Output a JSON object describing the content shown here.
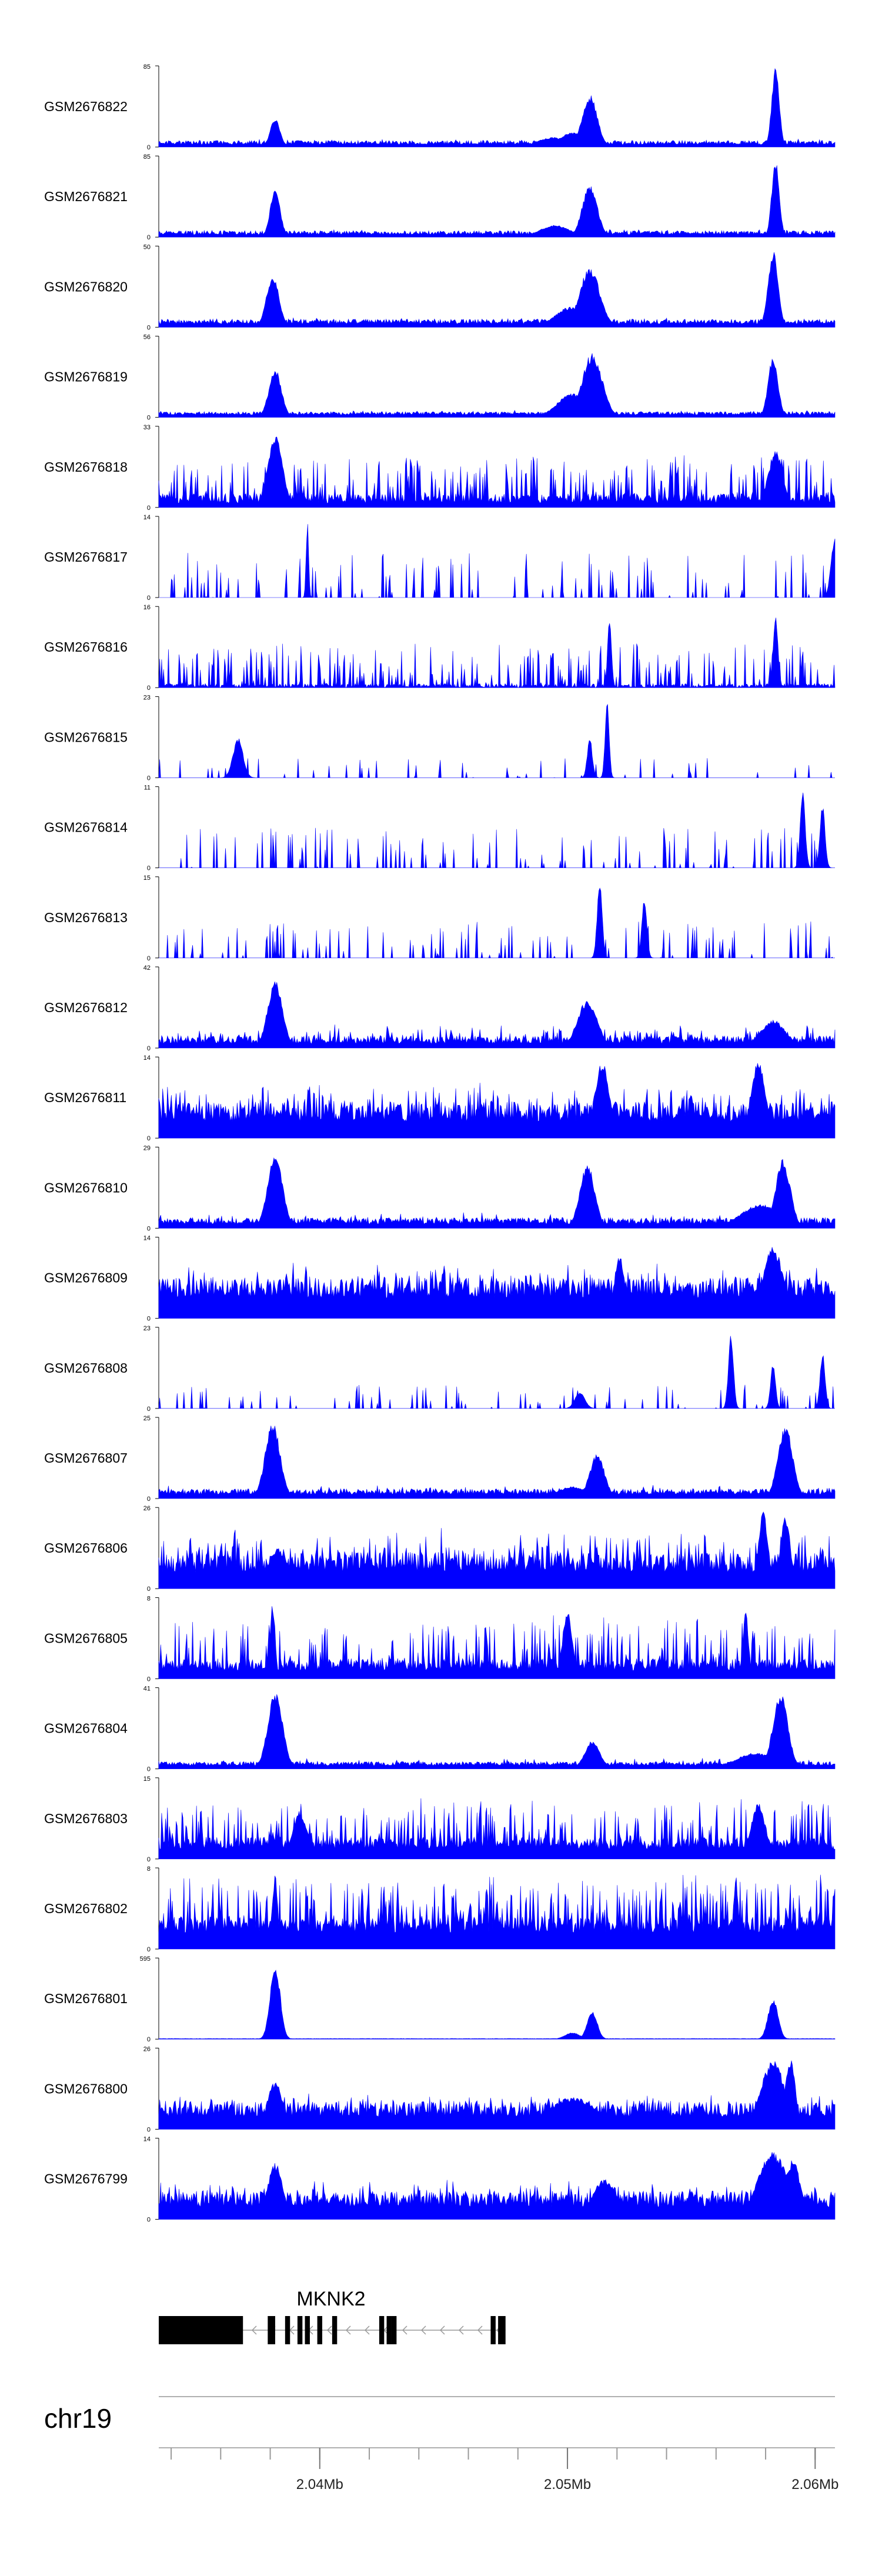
{
  "chart_data": {
    "type": "area",
    "title": "",
    "chromosome": "chr19",
    "gene": "MKNK2",
    "x_unit": "Mb",
    "xlim": [
      2.0335,
      2.0608
    ],
    "x_ticks": [
      2.04,
      2.05,
      2.06
    ],
    "x_tick_labels": [
      "2.04Mb",
      "2.05Mb",
      "2.06Mb"
    ],
    "minor_ticks": [
      2.034,
      2.036,
      2.038,
      2.04,
      2.042,
      2.044,
      2.046,
      2.048,
      2.05,
      2.052,
      2.054,
      2.056,
      2.058,
      2.06
    ],
    "fill_color": "#0000ff",
    "gene_model": {
      "strand": "-",
      "start": 2.0335,
      "end": 2.0475,
      "utr3": [
        2.0335,
        2.0368
      ],
      "exons": [
        [
          2.0335,
          2.0338
        ],
        [
          2.0355,
          2.0358
        ],
        [
          2.0366,
          2.0369
        ],
        [
          2.0379,
          2.0382
        ],
        [
          2.0386,
          2.0388
        ],
        [
          2.0391,
          2.0393
        ],
        [
          2.0394,
          2.0396
        ],
        [
          2.0399,
          2.0401
        ],
        [
          2.0405,
          2.0407
        ],
        [
          2.0424,
          2.0426
        ],
        [
          2.0427,
          2.0429
        ],
        [
          2.0429,
          2.0431
        ],
        [
          2.0469,
          2.0471
        ],
        [
          2.0472,
          2.0475
        ]
      ]
    },
    "series": [
      {
        "name": "GSM2676822",
        "ymax": 85,
        "baseline": 0.03,
        "noise": 0.05,
        "spikes": 0.02,
        "spikeFrac": 0.1,
        "peaks": [
          [
            2.0382,
            0.35,
            0.0002
          ],
          [
            2.0509,
            0.65,
            0.0003
          ],
          [
            2.0502,
            0.18,
            0.0005
          ],
          [
            2.0494,
            0.12,
            0.0006
          ],
          [
            2.0584,
            1.0,
            0.00015
          ]
        ]
      },
      {
        "name": "GSM2676821",
        "ymax": 85,
        "baseline": 0.03,
        "noise": 0.05,
        "spikes": 0.02,
        "spikeFrac": 0.1,
        "peaks": [
          [
            2.0382,
            0.6,
            0.0002
          ],
          [
            2.0509,
            0.65,
            0.0003
          ],
          [
            2.0495,
            0.15,
            0.0006
          ],
          [
            2.0584,
            0.98,
            0.00015
          ]
        ]
      },
      {
        "name": "GSM2676820",
        "ymax": 50,
        "baseline": 0.04,
        "noise": 0.06,
        "spikes": 0.02,
        "spikeFrac": 0.1,
        "peaks": [
          [
            2.0381,
            0.65,
            0.00025
          ],
          [
            2.0509,
            0.75,
            0.0004
          ],
          [
            2.0501,
            0.25,
            0.0006
          ],
          [
            2.0583,
            0.95,
            0.0002
          ]
        ]
      },
      {
        "name": "GSM2676819",
        "ymax": 56,
        "baseline": 0.03,
        "noise": 0.04,
        "spikes": 0.02,
        "spikeFrac": 0.1,
        "peaks": [
          [
            2.0382,
            0.6,
            0.00025
          ],
          [
            2.051,
            0.8,
            0.0004
          ],
          [
            2.0502,
            0.3,
            0.0006
          ],
          [
            2.0583,
            0.75,
            0.0002
          ]
        ]
      },
      {
        "name": "GSM2676818",
        "ymax": 33,
        "baseline": 0.05,
        "noise": 0.12,
        "spikes": 0.5,
        "spikeFrac": 0.3,
        "peaks": [
          [
            2.0382,
            0.9,
            0.0003
          ],
          [
            2.0584,
            0.7,
            0.0003
          ]
        ]
      },
      {
        "name": "GSM2676817",
        "ymax": 14,
        "baseline": 0.0,
        "noise": 0.0,
        "spikes": 0.55,
        "spikeFrac": 0.18,
        "peaks": [
          [
            2.0395,
            0.95,
            5e-05
          ],
          [
            2.0608,
            0.8,
            0.00015
          ]
        ]
      },
      {
        "name": "GSM2676816",
        "ymax": 16,
        "baseline": 0.0,
        "noise": 0.05,
        "spikes": 0.5,
        "spikeFrac": 0.3,
        "peaks": [
          [
            2.0517,
            0.85,
            8e-05
          ],
          [
            2.0584,
            0.9,
            0.0001
          ]
        ]
      },
      {
        "name": "GSM2676815",
        "ymax": 23,
        "baseline": 0.0,
        "noise": 0.0,
        "spikes": 0.25,
        "spikeFrac": 0.06,
        "peaks": [
          [
            2.0367,
            0.5,
            0.0002
          ],
          [
            2.0516,
            0.95,
            8e-05
          ],
          [
            2.0509,
            0.5,
            0.0001
          ]
        ]
      },
      {
        "name": "GSM2676814",
        "ymax": 11,
        "baseline": 0.0,
        "noise": 0.0,
        "spikes": 0.5,
        "spikeFrac": 0.15,
        "peaks": [
          [
            2.0595,
            0.95,
            0.0001
          ],
          [
            2.0603,
            0.8,
            0.0001
          ]
        ]
      },
      {
        "name": "GSM2676813",
        "ymax": 15,
        "baseline": 0.0,
        "noise": 0.0,
        "spikes": 0.45,
        "spikeFrac": 0.14,
        "peaks": [
          [
            2.0513,
            0.95,
            0.0001
          ],
          [
            2.0531,
            0.75,
            0.0001
          ]
        ]
      },
      {
        "name": "GSM2676812",
        "ymax": 42,
        "baseline": 0.05,
        "noise": 0.1,
        "spikes": 0.15,
        "spikeFrac": 0.2,
        "peaks": [
          [
            2.0382,
            0.85,
            0.0003
          ],
          [
            2.0508,
            0.6,
            0.0004
          ],
          [
            2.0583,
            0.35,
            0.0005
          ]
        ]
      },
      {
        "name": "GSM2676811",
        "ymax": 14,
        "baseline": 0.2,
        "noise": 0.25,
        "spikes": 0.25,
        "spikeFrac": 0.25,
        "peaks": [
          [
            2.0514,
            0.95,
            0.0003
          ],
          [
            2.0577,
            0.95,
            0.0003
          ],
          [
            2.0378,
            0.3,
            0.0008
          ],
          [
            2.0553,
            0.3,
            0.0015
          ]
        ]
      },
      {
        "name": "GSM2676810",
        "ymax": 29,
        "baseline": 0.05,
        "noise": 0.08,
        "spikes": 0.08,
        "spikeFrac": 0.1,
        "peaks": [
          [
            2.0382,
            0.95,
            0.0003
          ],
          [
            2.0508,
            0.8,
            0.0003
          ],
          [
            2.0587,
            0.85,
            0.0003
          ],
          [
            2.0578,
            0.3,
            0.0008
          ]
        ]
      },
      {
        "name": "GSM2676809",
        "ymax": 14,
        "baseline": 0.25,
        "noise": 0.25,
        "spikes": 0.2,
        "spikeFrac": 0.25,
        "peaks": [
          [
            2.0583,
            0.9,
            0.0004
          ],
          [
            2.0521,
            0.8,
            0.0002
          ],
          [
            2.0372,
            0.25,
            0.0015
          ]
        ]
      },
      {
        "name": "GSM2676808",
        "ymax": 23,
        "baseline": 0.0,
        "noise": 0.0,
        "spikes": 0.3,
        "spikeFrac": 0.12,
        "peaks": [
          [
            2.0566,
            0.95,
            0.0001
          ],
          [
            2.0505,
            0.2,
            0.0002
          ],
          [
            2.0583,
            0.55,
            0.0001
          ],
          [
            2.0603,
            0.7,
            0.0001
          ]
        ]
      },
      {
        "name": "GSM2676807",
        "ymax": 25,
        "baseline": 0.05,
        "noise": 0.07,
        "spikes": 0.06,
        "spikeFrac": 0.1,
        "peaks": [
          [
            2.0381,
            0.95,
            0.0003
          ],
          [
            2.0512,
            0.55,
            0.0003
          ],
          [
            2.0588,
            0.9,
            0.0003
          ],
          [
            2.0502,
            0.15,
            0.0006
          ]
        ]
      },
      {
        "name": "GSM2676806",
        "ymax": 26,
        "baseline": 0.2,
        "noise": 0.25,
        "spikes": 0.3,
        "spikeFrac": 0.3,
        "peaks": [
          [
            2.0579,
            0.95,
            0.0002
          ],
          [
            2.0588,
            0.9,
            0.0002
          ],
          [
            2.0383,
            0.5,
            0.0004
          ]
        ]
      },
      {
        "name": "GSM2676805",
        "ymax": 8,
        "baseline": 0.1,
        "noise": 0.15,
        "spikes": 0.55,
        "spikeFrac": 0.25,
        "peaks": [
          [
            2.0381,
            0.95,
            0.0001
          ],
          [
            2.05,
            0.85,
            0.0002
          ],
          [
            2.0572,
            0.9,
            0.0001
          ]
        ]
      },
      {
        "name": "GSM2676804",
        "ymax": 41,
        "baseline": 0.04,
        "noise": 0.05,
        "spikes": 0.05,
        "spikeFrac": 0.1,
        "peaks": [
          [
            2.0382,
            0.95,
            0.0003
          ],
          [
            2.0586,
            0.95,
            0.0003
          ],
          [
            2.051,
            0.35,
            0.0003
          ],
          [
            2.0576,
            0.2,
            0.0008
          ]
        ]
      },
      {
        "name": "GSM2676803",
        "ymax": 15,
        "baseline": 0.12,
        "noise": 0.15,
        "spikes": 0.5,
        "spikeFrac": 0.3,
        "peaks": [
          [
            2.0392,
            0.6,
            0.0003
          ],
          [
            2.0577,
            0.7,
            0.0003
          ]
        ]
      },
      {
        "name": "GSM2676802",
        "ymax": 8,
        "baseline": 0.2,
        "noise": 0.2,
        "spikes": 0.55,
        "spikeFrac": 0.4,
        "peaks": [
          [
            2.0382,
            0.95,
            0.0001
          ],
          [
            2.0568,
            0.9,
            0.0001
          ]
        ]
      },
      {
        "name": "GSM2676801",
        "ymax": 595,
        "baseline": 0.005,
        "noise": 0.004,
        "spikes": 0.0,
        "spikeFrac": 0.0,
        "peaks": [
          [
            2.0382,
            0.95,
            0.0002
          ],
          [
            2.051,
            0.35,
            0.0002
          ],
          [
            2.0502,
            0.08,
            0.0003
          ],
          [
            2.0583,
            0.5,
            0.0002
          ]
        ]
      },
      {
        "name": "GSM2676800",
        "ymax": 26,
        "baseline": 0.15,
        "noise": 0.2,
        "spikes": 0.1,
        "spikeFrac": 0.2,
        "peaks": [
          [
            2.0583,
            0.85,
            0.0005
          ],
          [
            2.059,
            0.9,
            0.0002
          ],
          [
            2.0382,
            0.6,
            0.0003
          ],
          [
            2.0502,
            0.4,
            0.001
          ]
        ]
      },
      {
        "name": "GSM2676799",
        "ymax": 14,
        "baseline": 0.15,
        "noise": 0.2,
        "spikes": 0.15,
        "spikeFrac": 0.2,
        "peaks": [
          [
            2.0382,
            0.7,
            0.0003
          ],
          [
            2.0583,
            0.85,
            0.0006
          ],
          [
            2.0591,
            0.75,
            0.0003
          ],
          [
            2.0515,
            0.5,
            0.0005
          ]
        ]
      }
    ]
  }
}
